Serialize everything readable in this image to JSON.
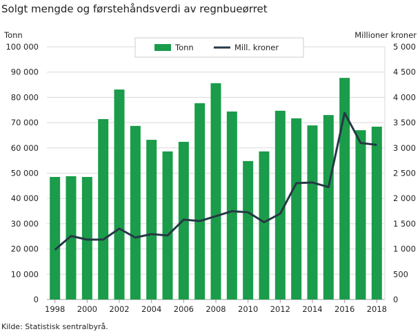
{
  "chart_data": {
    "type": "bar+line",
    "title": "Solgt mengde og førstehåndsverdi av regnbueørret",
    "source": "Kilde: Statistisk sentralbyrå.",
    "ylabel_left": "Tonn",
    "ylabel_right": "Millioner  kroner",
    "ylim_left": [
      0,
      100000
    ],
    "ylim_right": [
      0,
      5000
    ],
    "yticks_left": [
      "0",
      "10 000",
      "20 000",
      "30 000",
      "40 000",
      "50 000",
      "60 000",
      "70 000",
      "80 000",
      "90 000",
      "100 000"
    ],
    "yticks_right": [
      "0",
      "500",
      "1 000",
      "1 500",
      "2 000",
      "2 500",
      "3 000",
      "3 500",
      "4 000",
      "4 500",
      "5 000"
    ],
    "xticks": [
      "1998",
      "2000",
      "2002",
      "2004",
      "2006",
      "2008",
      "2010",
      "2012",
      "2014",
      "2016",
      "2018"
    ],
    "grid": true,
    "legend": "top-center",
    "categories": [
      1998,
      1999,
      2000,
      2001,
      2002,
      2003,
      2004,
      2005,
      2006,
      2007,
      2008,
      2009,
      2010,
      2011,
      2012,
      2013,
      2014,
      2015,
      2016,
      2017,
      2018
    ],
    "series": [
      {
        "name": "Tonn",
        "type": "bar",
        "axis": "left",
        "color": "#1b9c4a",
        "values": [
          48500,
          48800,
          48500,
          71400,
          83100,
          68700,
          63200,
          58600,
          62400,
          77700,
          85600,
          74400,
          54800,
          58600,
          74700,
          71700,
          68900,
          73000,
          87700,
          67000,
          68400
        ]
      },
      {
        "name": "Mill. kroner",
        "type": "line",
        "axis": "right",
        "color": "#253845",
        "values": [
          985,
          1257,
          1185,
          1185,
          1403,
          1226,
          1294,
          1267,
          1580,
          1553,
          1649,
          1748,
          1726,
          1530,
          1699,
          2302,
          2316,
          2225,
          3692,
          3097,
          3061
        ]
      }
    ]
  }
}
